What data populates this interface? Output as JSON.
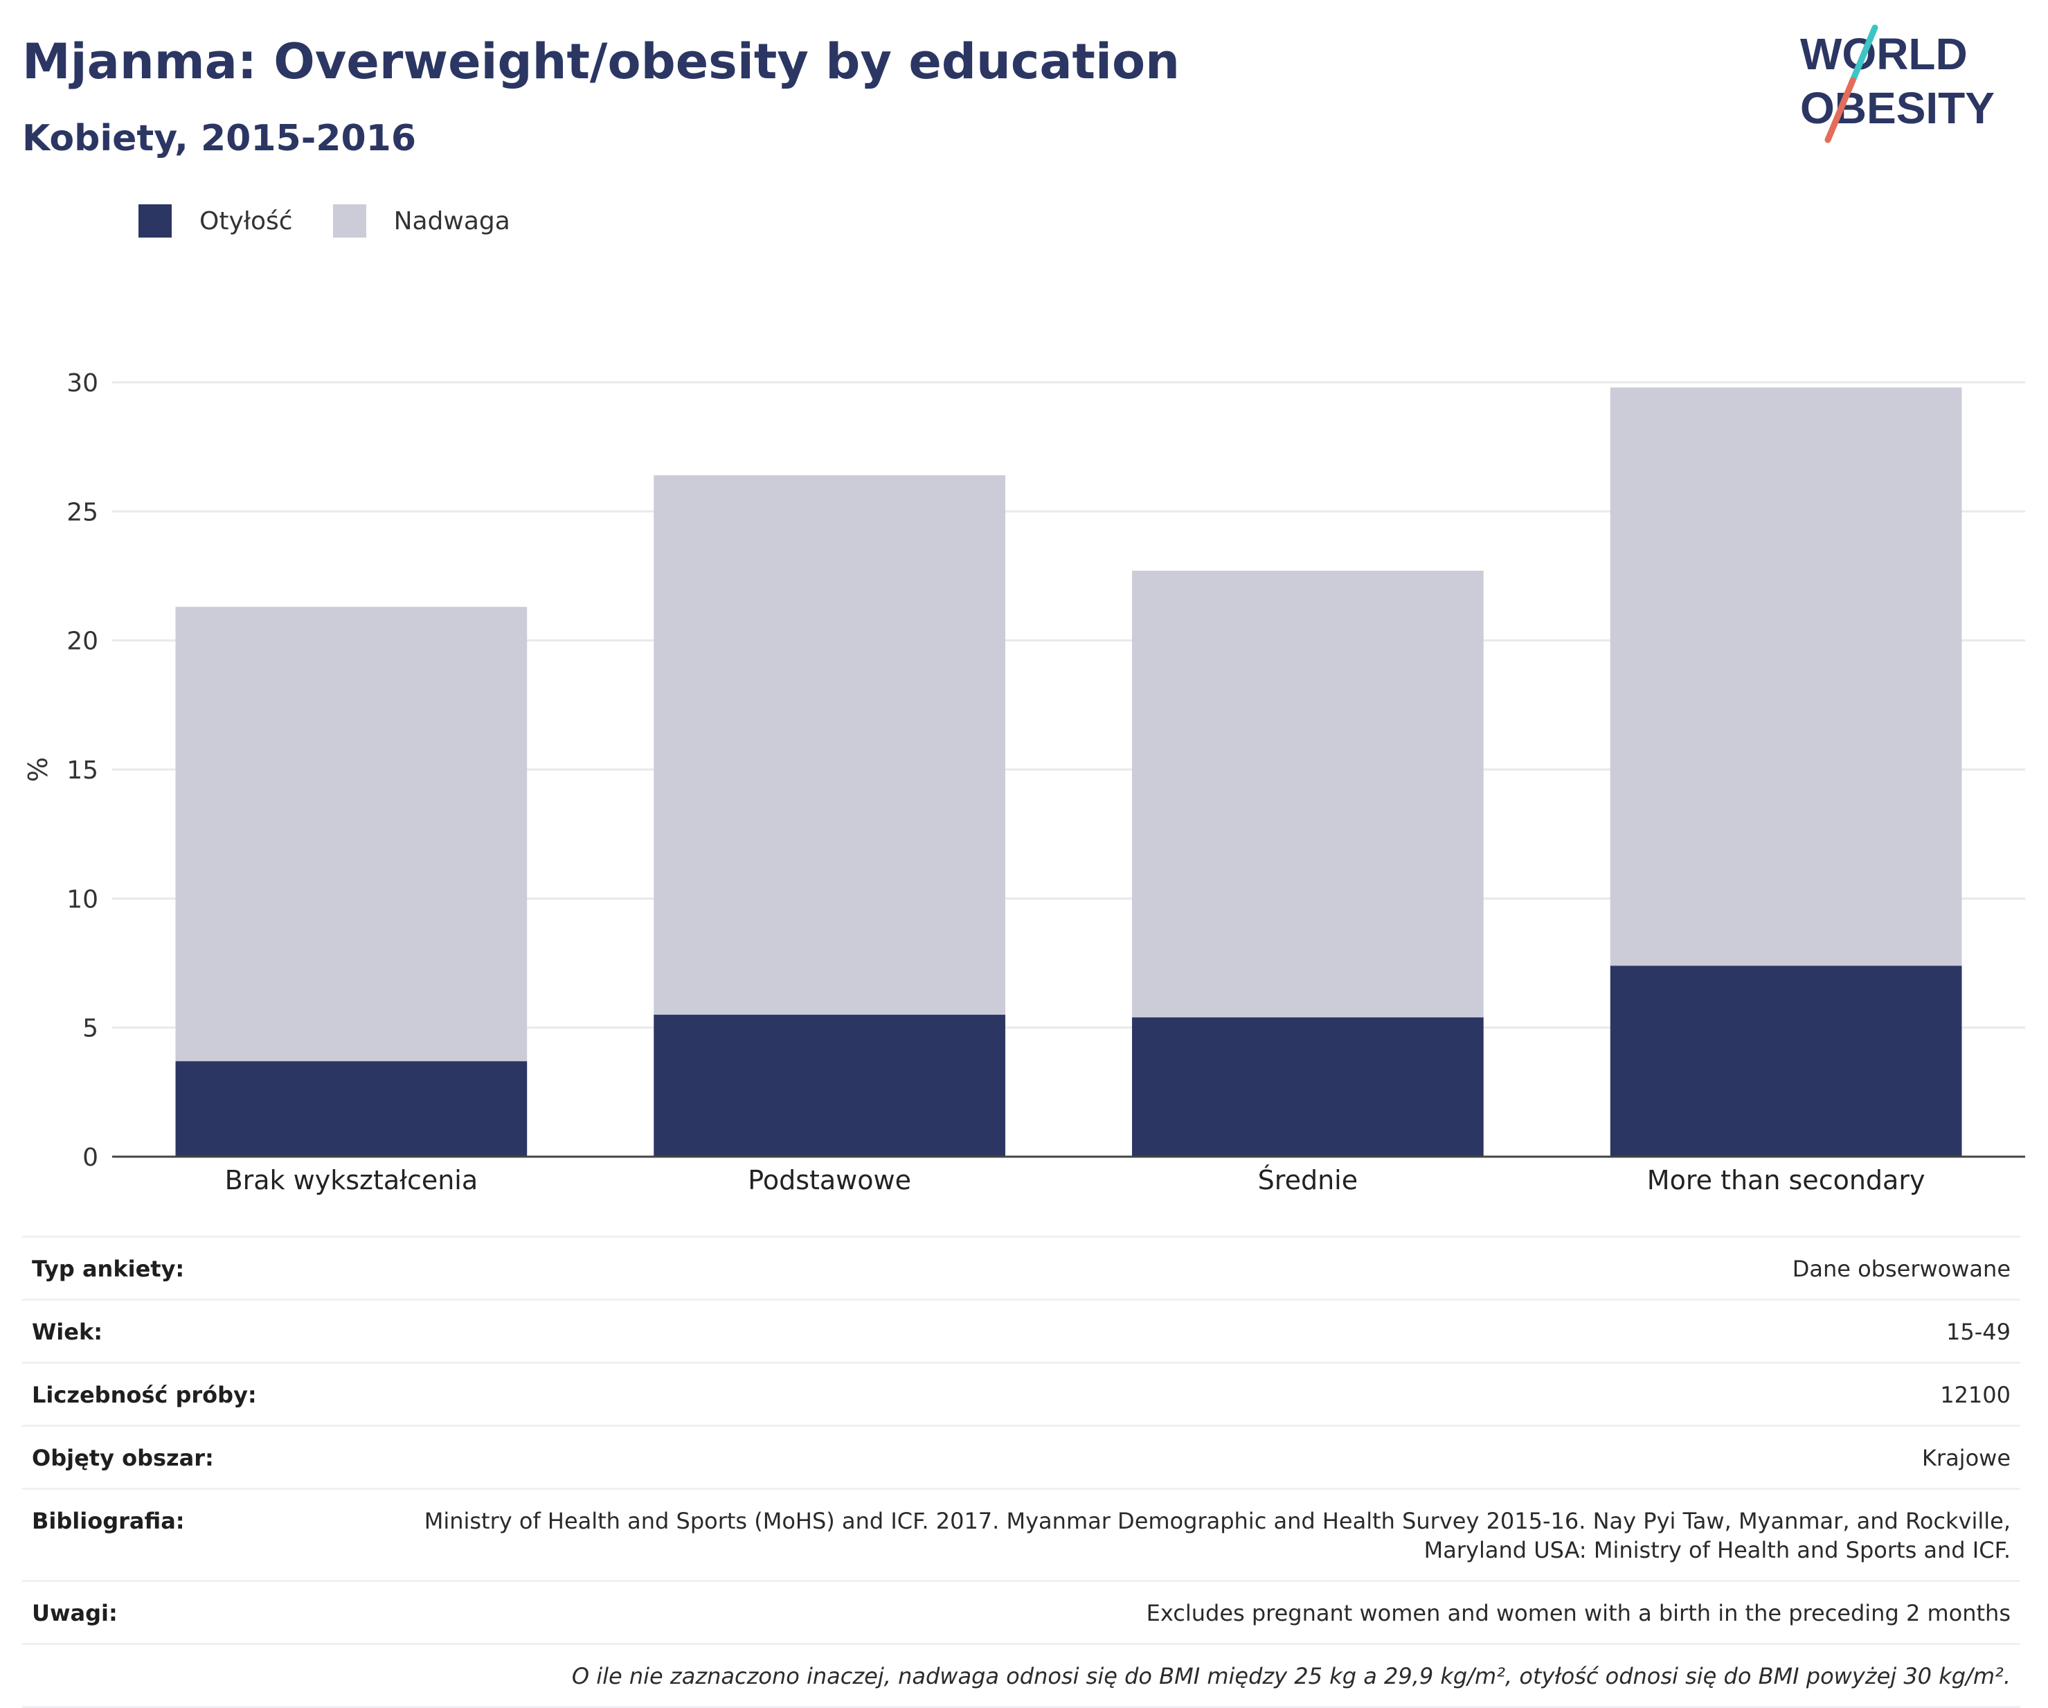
{
  "title": "Mjanma: Overweight/obesity by education",
  "subtitle": "Kobiety, 2015-2016",
  "logo": {
    "line1": "WORLD",
    "line2": "OBESITY",
    "colors": {
      "text": "#2b3663",
      "slash_top": "#3ec4c4",
      "slash_bottom": "#e26d5a"
    }
  },
  "legend": [
    {
      "name": "Otyłość",
      "color": "#2b3663"
    },
    {
      "name": "Nadwaga",
      "color": "#cbccd8"
    }
  ],
  "chart_data": {
    "type": "bar",
    "stacked": true,
    "categories": [
      "Brak wykształcenia",
      "Podstawowe",
      "Średnie",
      "More than secondary"
    ],
    "series": [
      {
        "name": "Otyłość",
        "color": "#2b3663",
        "values": [
          3.7,
          5.5,
          5.4,
          7.4
        ]
      },
      {
        "name": "Nadwaga",
        "color": "#cbccd8",
        "values": [
          17.6,
          20.9,
          17.3,
          22.4
        ]
      }
    ],
    "ylabel": "%",
    "ylim": [
      0,
      30
    ],
    "yticks": [
      0,
      5,
      10,
      15,
      20,
      25,
      30
    ],
    "grid": true,
    "legend_position": "top-left"
  },
  "info": [
    {
      "label": "Typ ankiety:",
      "value": "Dane obserwowane"
    },
    {
      "label": "Wiek:",
      "value": "15-49"
    },
    {
      "label": "Liczebność próby:",
      "value": "12100"
    },
    {
      "label": "Objęty obszar:",
      "value": "Krajowe"
    },
    {
      "label": "Bibliografia:",
      "value": "Ministry of Health and Sports (MoHS) and ICF. 2017. Myanmar Demographic and Health Survey 2015-16. Nay Pyi Taw, Myanmar, and Rockville, Maryland USA: Ministry of Health and Sports and ICF."
    },
    {
      "label": "Uwagi:",
      "value": "Excludes pregnant women and women with a birth in the preceding 2 months"
    }
  ],
  "note": "O ile nie zaznaczono inaczej, nadwaga odnosi się do BMI między 25 kg a 29,9 kg/m², otyłość odnosi się do BMI powyżej 30 kg/m²."
}
